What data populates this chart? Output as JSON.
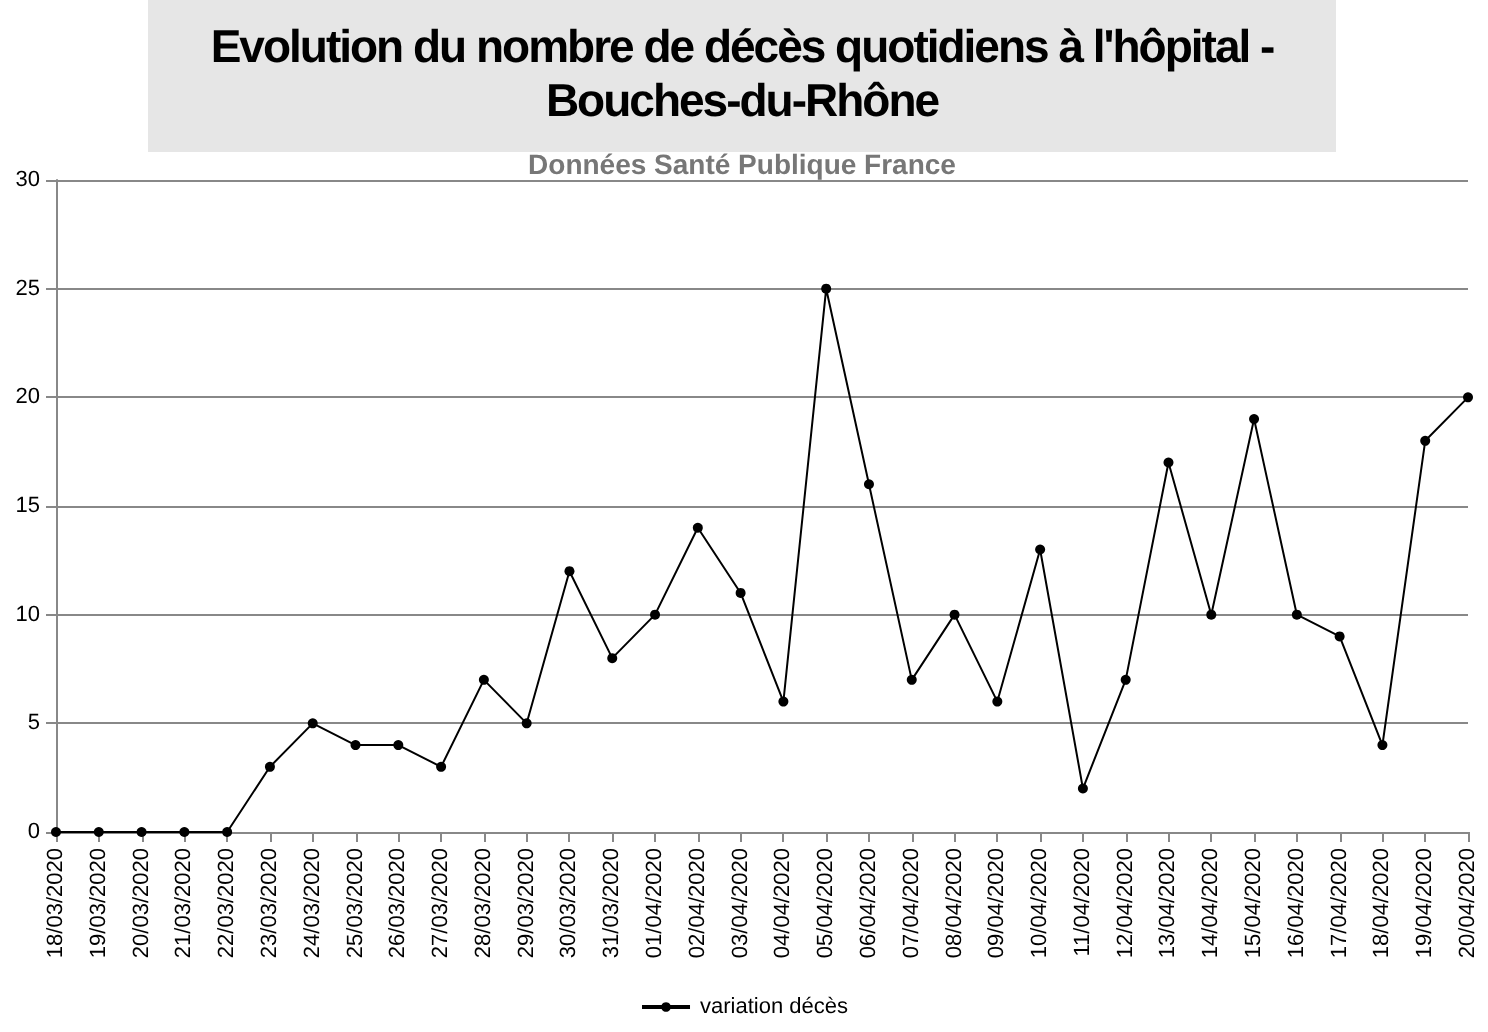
{
  "chart_data": {
    "type": "line",
    "title": "Evolution du nombre de décès quotidiens  à l'hôpital - Bouches-du-Rhône",
    "subtitle": "Données Santé Publique France",
    "categories": [
      "18/03/2020",
      "19/03/2020",
      "20/03/2020",
      "21/03/2020",
      "22/03/2020",
      "23/03/2020",
      "24/03/2020",
      "25/03/2020",
      "26/03/2020",
      "27/03/2020",
      "28/03/2020",
      "29/03/2020",
      "30/03/2020",
      "31/03/2020",
      "01/04/2020",
      "02/04/2020",
      "03/04/2020",
      "04/04/2020",
      "05/04/2020",
      "06/04/2020",
      "07/04/2020",
      "08/04/2020",
      "09/04/2020",
      "10/04/2020",
      "11/04/2020",
      "12/04/2020",
      "13/04/2020",
      "14/04/2020",
      "15/04/2020",
      "16/04/2020",
      "17/04/2020",
      "18/04/2020",
      "19/04/2020",
      "20/04/2020"
    ],
    "series": [
      {
        "name": "variation décès",
        "color": "#000000",
        "values": [
          0,
          0,
          0,
          0,
          0,
          3,
          5,
          4,
          4,
          3,
          7,
          5,
          12,
          8,
          10,
          14,
          11,
          6,
          25,
          16,
          7,
          10,
          6,
          13,
          2,
          7,
          17,
          10,
          19,
          10,
          9,
          4,
          18,
          20
        ]
      }
    ],
    "ylim": [
      0,
      30
    ],
    "yticks": [
      0,
      5,
      10,
      15,
      20,
      25,
      30
    ],
    "grid": "y",
    "legend": "bottom",
    "marker": "circle",
    "line_style": "solid"
  }
}
